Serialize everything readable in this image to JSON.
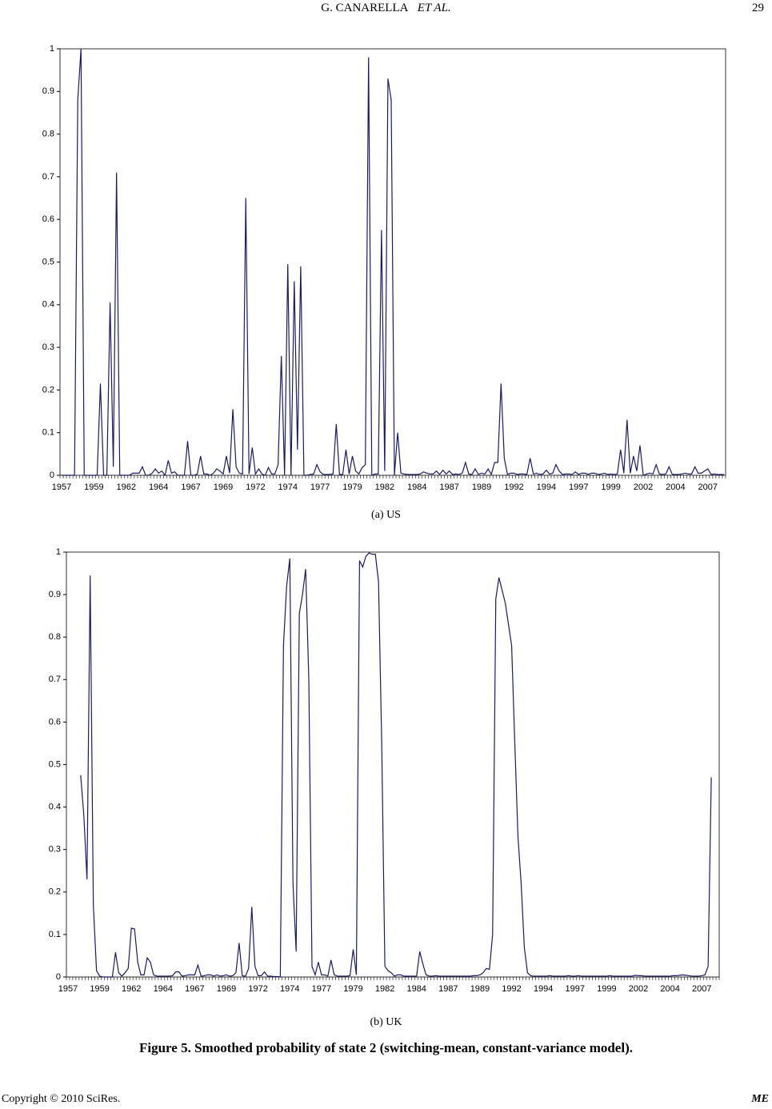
{
  "header": {
    "author": "G. CANARELLA",
    "etal": "ET AL.",
    "page_number": "29"
  },
  "chart_data": [
    {
      "type": "line",
      "caption": "(a) US",
      "color": "#1a1a66",
      "categories": [
        "1957",
        null,
        null,
        null,
        null,
        null,
        null,
        null,
        null,
        null,
        "1959",
        null,
        null,
        null,
        null,
        null,
        null,
        null,
        null,
        null,
        "1962",
        null,
        null,
        null,
        null,
        null,
        null,
        null,
        null,
        null,
        "1964",
        null,
        null,
        null,
        null,
        null,
        null,
        null,
        null,
        null,
        "1967",
        null,
        null,
        null,
        null,
        null,
        null,
        null,
        null,
        null,
        "1969",
        null,
        null,
        null,
        null,
        null,
        null,
        null,
        null,
        null,
        "1972",
        null,
        null,
        null,
        null,
        null,
        null,
        null,
        null,
        null,
        "1974",
        null,
        null,
        null,
        null,
        null,
        null,
        null,
        null,
        null,
        "1977",
        null,
        null,
        null,
        null,
        null,
        null,
        null,
        null,
        null,
        "1979",
        null,
        null,
        null,
        null,
        null,
        null,
        null,
        null,
        null,
        "1982",
        null,
        null,
        null,
        null,
        null,
        null,
        null,
        null,
        null,
        "1984",
        null,
        null,
        null,
        null,
        null,
        null,
        null,
        null,
        null,
        "1987",
        null,
        null,
        null,
        null,
        null,
        null,
        null,
        null,
        null,
        "1989",
        null,
        null,
        null,
        null,
        null,
        null,
        null,
        null,
        null,
        "1992",
        null,
        null,
        null,
        null,
        null,
        null,
        null,
        null,
        null,
        "1994",
        null,
        null,
        null,
        null,
        null,
        null,
        null,
        null,
        null,
        "1997",
        null,
        null,
        null,
        null,
        null,
        null,
        null,
        null,
        null,
        "1999",
        null,
        null,
        null,
        null,
        null,
        null,
        null,
        null,
        null,
        "2002",
        null,
        null,
        null,
        null,
        null,
        null,
        null,
        null,
        null,
        "2004",
        null,
        null,
        null,
        null,
        null,
        null,
        null,
        null,
        null,
        "2007",
        null,
        null,
        null,
        null,
        null
      ],
      "values": [
        0,
        0,
        0,
        0,
        0,
        0.88,
        1,
        0,
        0,
        0,
        0,
        0,
        0.215,
        0,
        0,
        0.405,
        0.02,
        0.71,
        0,
        0,
        0,
        0,
        0.005,
        0.005,
        0.005,
        0.02,
        0,
        0,
        0.005,
        0.015,
        0.005,
        0.01,
        0,
        0.035,
        0.005,
        0.008,
        0,
        0,
        0,
        0.08,
        0,
        0,
        0.003,
        0.045,
        0.003,
        0.003,
        0,
        0.005,
        0.015,
        0.01,
        0.003,
        0.045,
        0.005,
        0.155,
        0.02,
        0.005,
        0.003,
        0.65,
        0.003,
        0.065,
        0.003,
        0.015,
        0.003,
        0,
        0.018,
        0.003,
        0.003,
        0.025,
        0.28,
        0,
        0.495,
        0,
        0.455,
        0.06,
        0.49,
        0,
        0,
        0.002,
        0.003,
        0.025,
        0.008,
        0.002,
        0.002,
        0.002,
        0.003,
        0.12,
        0.002,
        0.002,
        0.06,
        0.003,
        0.045,
        0.01,
        0.003,
        0.018,
        0.025,
        0.98,
        0,
        0.003,
        0.003,
        0.575,
        0.01,
        0.93,
        0.88,
        0,
        0.1,
        0.005,
        0.003,
        0.002,
        0.002,
        0.002,
        0.002,
        0.003,
        0.008,
        0.005,
        0.003,
        0.003,
        0.01,
        0.002,
        0.012,
        0.003,
        0.01,
        0.002,
        0.003,
        0.002,
        0.005,
        0.03,
        0.003,
        0.002,
        0.015,
        0.002,
        0.005,
        0.003,
        0.015,
        0.002,
        0.03,
        0.03,
        0.215,
        0.04,
        0.002,
        0.005,
        0.005,
        0.002,
        0.003,
        0.003,
        0.002,
        0.04,
        0.003,
        0.005,
        0.002,
        0.003,
        0.012,
        0.003,
        0.005,
        0.025,
        0.01,
        0.002,
        0.003,
        0.003,
        0.002,
        0.008,
        0.002,
        0.005,
        0.005,
        0.002,
        0.005,
        0.005,
        0.002,
        0.003,
        0.005,
        0.002,
        0.003,
        0.002,
        0.003,
        0.06,
        0.005,
        0.13,
        0.005,
        0.045,
        0.01,
        0.07,
        0,
        0.003,
        0.005,
        0.003,
        0.025,
        0.003,
        0.002,
        0.003,
        0.02,
        0.002,
        0.002,
        0.002,
        0.003,
        0.005,
        0.003,
        0.003,
        0.02,
        0.005,
        0.005,
        0.01,
        0.015,
        0.002,
        0.003,
        0.002,
        0.002,
        0.002
      ],
      "ylim": [
        0,
        1
      ],
      "yticks": [
        0,
        0.1,
        0.2,
        0.3,
        0.4,
        0.5,
        0.6,
        0.7,
        0.8,
        0.9,
        1
      ]
    },
    {
      "type": "line",
      "caption": "(b) UK",
      "color": "#1a1a66",
      "categories": [
        "1957",
        null,
        null,
        null,
        null,
        null,
        null,
        null,
        null,
        null,
        "1959",
        null,
        null,
        null,
        null,
        null,
        null,
        null,
        null,
        null,
        "1962",
        null,
        null,
        null,
        null,
        null,
        null,
        null,
        null,
        null,
        "1964",
        null,
        null,
        null,
        null,
        null,
        null,
        null,
        null,
        null,
        "1967",
        null,
        null,
        null,
        null,
        null,
        null,
        null,
        null,
        null,
        "1969",
        null,
        null,
        null,
        null,
        null,
        null,
        null,
        null,
        null,
        "1972",
        null,
        null,
        null,
        null,
        null,
        null,
        null,
        null,
        null,
        "1974",
        null,
        null,
        null,
        null,
        null,
        null,
        null,
        null,
        null,
        "1977",
        null,
        null,
        null,
        null,
        null,
        null,
        null,
        null,
        null,
        "1979",
        null,
        null,
        null,
        null,
        null,
        null,
        null,
        null,
        null,
        "1982",
        null,
        null,
        null,
        null,
        null,
        null,
        null,
        null,
        null,
        "1984",
        null,
        null,
        null,
        null,
        null,
        null,
        null,
        null,
        null,
        "1987",
        null,
        null,
        null,
        null,
        null,
        null,
        null,
        null,
        null,
        "1989",
        null,
        null,
        null,
        null,
        null,
        null,
        null,
        null,
        null,
        "1992",
        null,
        null,
        null,
        null,
        null,
        null,
        null,
        null,
        null,
        "1994",
        null,
        null,
        null,
        null,
        null,
        null,
        null,
        null,
        null,
        "1997",
        null,
        null,
        null,
        null,
        null,
        null,
        null,
        null,
        null,
        "1999",
        null,
        null,
        null,
        null,
        null,
        null,
        null,
        null,
        null,
        "2002",
        null,
        null,
        null,
        null,
        null,
        null,
        null,
        null,
        null,
        "2004",
        null,
        null,
        null,
        null,
        null,
        null,
        null,
        null,
        null,
        "2007",
        null,
        null,
        null,
        null,
        null
      ],
      "values": [
        null,
        null,
        null,
        null,
        0.475,
        0.38,
        0.23,
        0.945,
        0.17,
        0.015,
        0.002,
        0,
        0,
        0,
        0,
        0.058,
        0.01,
        0.002,
        0.01,
        0.02,
        0.115,
        0.113,
        0.035,
        0.005,
        0.005,
        0.045,
        0.035,
        0.005,
        0.002,
        0.002,
        0.002,
        0.002,
        0.002,
        0.003,
        0.012,
        0.012,
        0.002,
        0.003,
        0.005,
        0.005,
        0.005,
        0.028,
        0.002,
        0.003,
        0.005,
        0.005,
        0.002,
        0.005,
        0.002,
        0.003,
        0.005,
        0.002,
        0.003,
        0.01,
        0.08,
        0.003,
        0.002,
        0.02,
        0.165,
        0.025,
        0.003,
        0.003,
        0.012,
        0.002,
        0.002,
        0.001,
        0.001,
        0,
        0.78,
        0.92,
        0.985,
        0.22,
        0.06,
        0.855,
        0.9,
        0.96,
        0.7,
        0.025,
        0.005,
        0.035,
        0.005,
        0.005,
        0.002,
        0.04,
        0.005,
        0.002,
        0.002,
        0.002,
        0.002,
        0.003,
        0.065,
        0.005,
        0.98,
        0.965,
        0.99,
        0.998,
        0.995,
        0.995,
        0.93,
        0.55,
        0.025,
        0.015,
        0.01,
        0.002,
        0.005,
        0.005,
        0.002,
        0.002,
        0.002,
        0.002,
        0.002,
        0.06,
        0.03,
        0.005,
        0.002,
        0.002,
        0.003,
        0.002,
        0.002,
        0.002,
        0.002,
        0.002,
        0.002,
        0.002,
        0.002,
        0.002,
        0.002,
        0.002,
        0.003,
        0.003,
        0.005,
        0.01,
        0.02,
        0.018,
        0.1,
        0.89,
        0.94,
        0.91,
        0.88,
        0.83,
        0.78,
        0.55,
        0.33,
        0.22,
        0.07,
        0.01,
        0.003,
        0.002,
        0.002,
        0.002,
        0.002,
        0.002,
        0.003,
        0.002,
        0.002,
        0.002,
        0.002,
        0.002,
        0.003,
        0.002,
        0.002,
        0.003,
        0.002,
        0.002,
        0.002,
        0.002,
        0.002,
        0.002,
        0.002,
        0.002,
        0.002,
        0.003,
        0.002,
        0.002,
        0.002,
        0.002,
        0.002,
        0.002,
        0.002,
        0.004,
        0.003,
        0.003,
        0.002,
        0.002,
        0.002,
        0.002,
        0.002,
        0.002,
        0.002,
        0.002,
        0.002,
        0.003,
        0.003,
        0.004,
        0.005,
        0.004,
        0.003,
        0.002,
        0.002,
        0.002,
        0.003,
        0.005,
        0.025,
        0.47,
        null,
        null
      ],
      "ylim": [
        0,
        1
      ],
      "yticks": [
        0,
        0.1,
        0.2,
        0.3,
        0.4,
        0.5,
        0.6,
        0.7,
        0.8,
        0.9,
        1
      ]
    }
  ],
  "figure_caption": "Figure 5. Smoothed probability of state 2 (switching-mean, constant-variance model).",
  "footer": {
    "copyright": "Copyright © 2010 SciRes.",
    "journal": "ME"
  }
}
